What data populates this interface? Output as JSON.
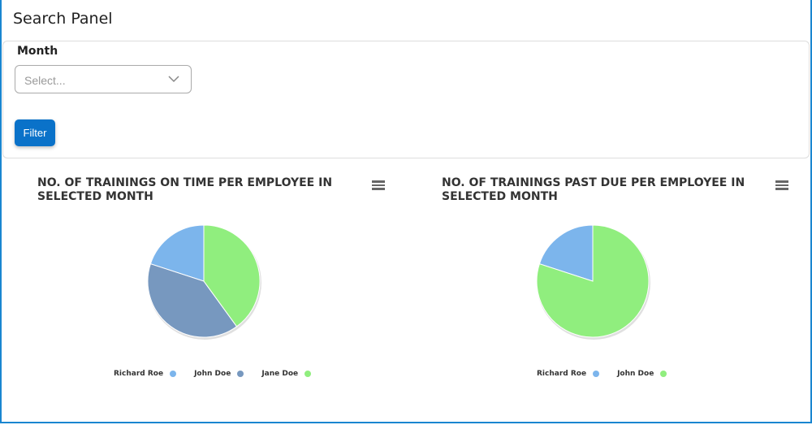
{
  "header": {
    "title": "Search Panel"
  },
  "search": {
    "month_label": "Month",
    "month_placeholder": "Select...",
    "filter_label": "Filter"
  },
  "colors": {
    "accent": "#0a72c9",
    "frame": "#1a86d0",
    "richard": "#7cb5ec",
    "john": "#7798bf",
    "jane": "#90ee7e"
  },
  "chart_data": [
    {
      "type": "pie",
      "title": "NO. OF TRAININGS ON TIME PER EMPLOYEE IN SELECTED MONTH",
      "legend": "bottom",
      "series": [
        {
          "name": "Richard Roe",
          "value": 1,
          "color": "#7cb5ec"
        },
        {
          "name": "John Doe",
          "value": 2,
          "color": "#7798bf"
        },
        {
          "name": "Jane Doe",
          "value": 2,
          "color": "#90ee7e"
        }
      ]
    },
    {
      "type": "pie",
      "title": "NO. OF TRAININGS PAST DUE PER EMPLOYEE IN SELECTED MONTH",
      "legend": "bottom",
      "series": [
        {
          "name": "Richard Roe",
          "value": 1,
          "color": "#7cb5ec"
        },
        {
          "name": "John Doe",
          "value": 4,
          "color": "#90ee7e"
        }
      ]
    }
  ]
}
